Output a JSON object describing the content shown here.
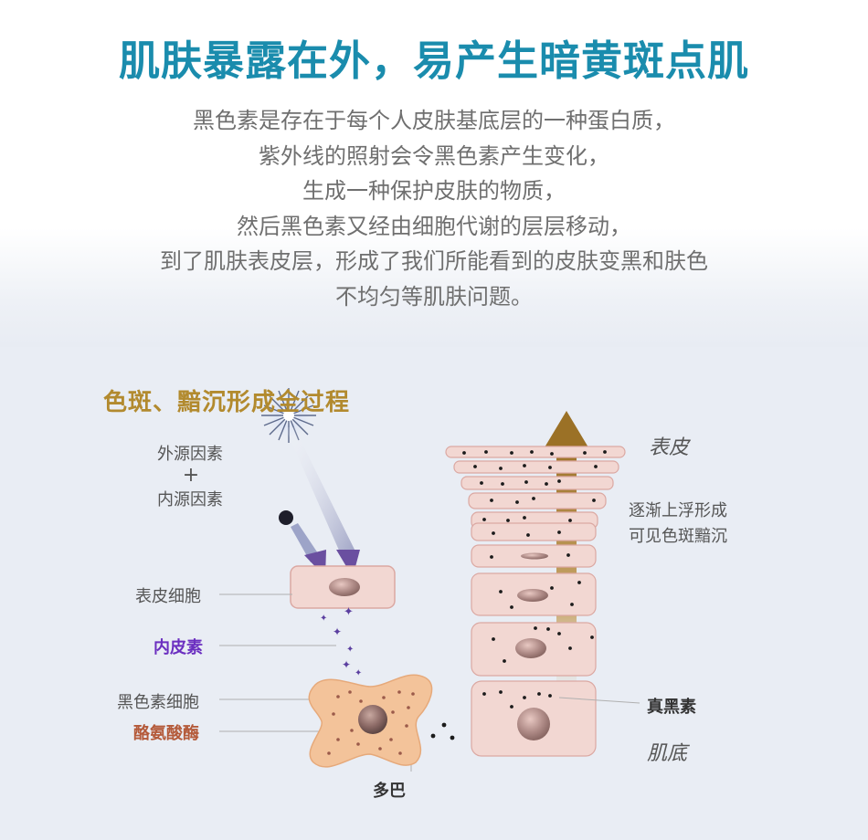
{
  "headline": "肌肤暴露在外，易产生暗黄斑点肌",
  "description_lines": [
    "黑色素是存在于每个人皮肤基底层的一种蛋白质，",
    "紫外线的照射会令黑色素产生变化，",
    "生成一种保护皮肤的物质，",
    "然后黑色素又经由细胞代谢的层层移动，",
    "到了肌肤表皮层，形成了我们所能看到的皮肤变黑和肤色",
    "不均匀等肌肤问题。"
  ],
  "diagram": {
    "title": "色斑、黯沉形成全过程",
    "external_factor": "外源因素",
    "plus": "+",
    "internal_factor": "内源因素",
    "epidermal_cell": "表皮细胞",
    "endothelin": "内皮素",
    "melanocyte": "黑色素细胞",
    "tyrosinase": "酪氨酸酶",
    "dopa": "多巴",
    "epidermis": "表皮",
    "rise_line1": "逐渐上浮形成",
    "rise_line2": "可见色斑黯沉",
    "eumelanin": "真黑素",
    "basal": "肌底"
  },
  "colors": {
    "headline": "#1a8cad",
    "description": "#6f6f6f",
    "diagram_title": "#b28a2e",
    "endothelin": "#6b2fc0",
    "tyrosinase": "#b45a3a",
    "cell_fill": "#f2d7d2",
    "melanocyte_fill": "#f3c39a",
    "arrow_gold": "#9b7126"
  }
}
